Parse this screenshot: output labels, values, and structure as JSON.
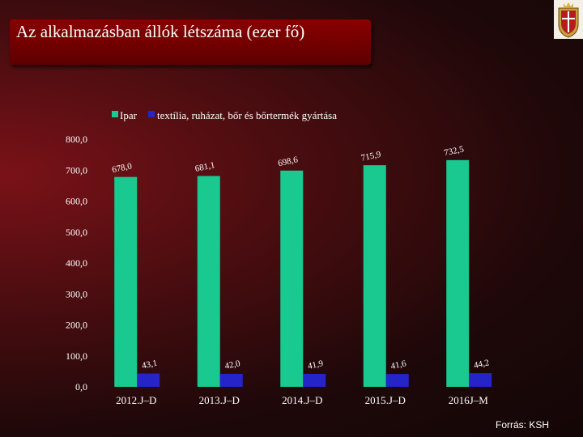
{
  "title": "Az alkalmazásban állók létszáma (ezer fő)",
  "source": "Forrás: KSH",
  "colors": {
    "series1": "#19c98f",
    "series2": "#2424c8",
    "text": "#ffffff"
  },
  "icons": {
    "emblem": "coat-of-arms-icon"
  },
  "chart_data": {
    "type": "bar",
    "categories": [
      "2012.J–D",
      "2013.J–D",
      "2014.J–D",
      "2015.J–D",
      "2016J–M"
    ],
    "series": [
      {
        "name": "Ipar",
        "values": [
          678.0,
          681.1,
          698.6,
          715.9,
          732.5
        ],
        "labels": [
          "678,0",
          "681,1",
          "698,6",
          "715,9",
          "732,5"
        ]
      },
      {
        "name": "textília, ruházat, bőr és bőrtermék gyártása",
        "values": [
          43.1,
          42.0,
          41.9,
          41.6,
          44.2
        ],
        "labels": [
          "43,1",
          "42,0",
          "41,9",
          "41,6",
          "44,2"
        ]
      }
    ],
    "yticks": [
      "0,0",
      "100,0",
      "200,0",
      "300,0",
      "400,0",
      "500,0",
      "600,0",
      "700,0",
      "800,0"
    ],
    "ylim": [
      0,
      800
    ],
    "grid": false,
    "legend": "top"
  }
}
